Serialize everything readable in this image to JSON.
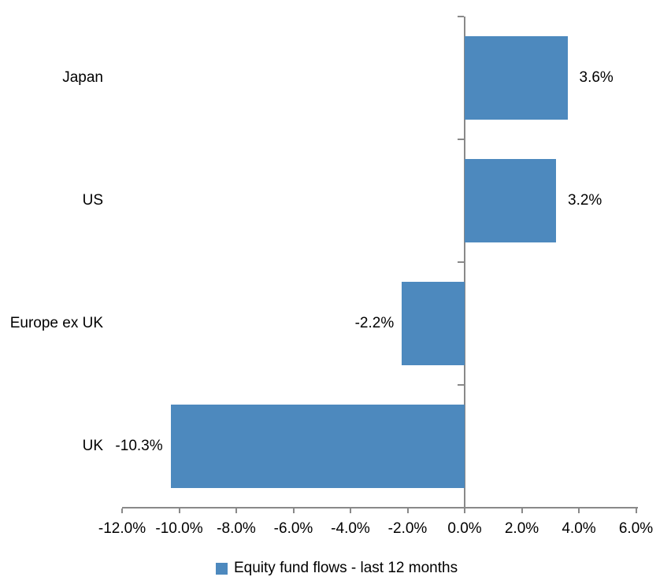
{
  "chart_data": {
    "type": "bar",
    "orientation": "horizontal",
    "title": "",
    "categories": [
      "Japan",
      "US",
      "Europe ex UK",
      "UK"
    ],
    "values": [
      3.6,
      3.2,
      -2.2,
      -10.3
    ],
    "data_labels": [
      "3.6%",
      "3.2%",
      "-2.2%",
      "-10.3%"
    ],
    "x_tick_values": [
      -12,
      -10,
      -8,
      -6,
      -4,
      -2,
      0,
      2,
      4,
      6
    ],
    "x_tick_labels": [
      "-12.0%",
      "-10.0%",
      "-8.0%",
      "-6.0%",
      "-4.0%",
      "-2.0%",
      "0.0%",
      "2.0%",
      "4.0%",
      "6.0%"
    ],
    "xlim": [
      -12,
      6
    ],
    "grid": false,
    "legend_position": "bottom",
    "legend": [
      {
        "label": "Equity fund flows - last 12 months",
        "color": "#4D89BE"
      }
    ],
    "colors": {
      "bar": "#4D89BE",
      "axis": "#898989",
      "text": "#000000",
      "background": "#ffffff"
    }
  }
}
